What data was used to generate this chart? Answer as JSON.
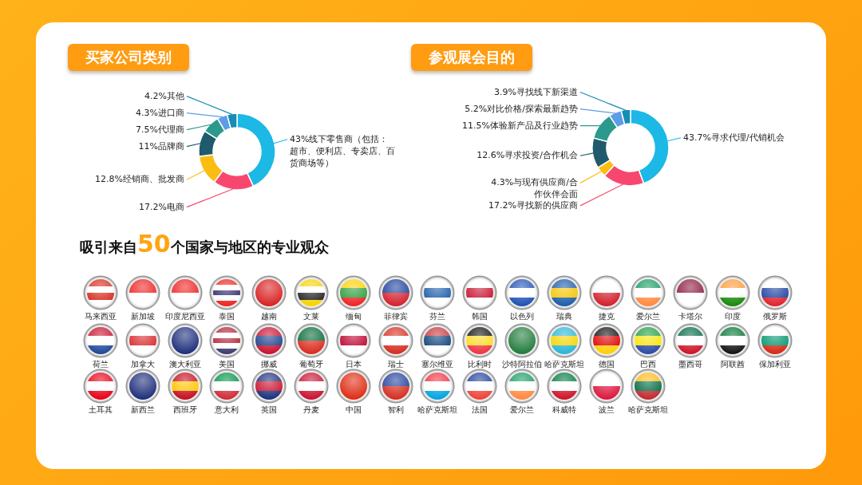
{
  "chart_data": [
    {
      "type": "donut",
      "title": "买家公司类别",
      "categories": [
        "线下零售商（包括：超市、便利店、专卖店、百货商场等）",
        "电商",
        "经销商、批发商",
        "品牌商",
        "代理商",
        "进口商",
        "其他"
      ],
      "values": [
        43,
        17.2,
        12.8,
        11,
        7.5,
        4.3,
        4.2
      ],
      "value_labels": [
        "43%",
        "17.2%",
        "12.8%",
        "11%",
        "7.5%",
        "4.3%",
        "4.2%"
      ],
      "colors": [
        "#1cb8e6",
        "#f7476e",
        "#fbbd12",
        "#1f5b6c",
        "#2b9a8c",
        "#5c9ce8",
        "#168db4"
      ]
    },
    {
      "type": "donut",
      "title": "参观展会目的",
      "categories": [
        "寻求代理/代销机会",
        "寻找新的供应商",
        "与现有供应商/合作伙伴会面",
        "寻求投资/合作机会",
        "体验新产品及行业趋势",
        "对比价格/探索最新趋势",
        "寻找线下新渠道"
      ],
      "values": [
        43.7,
        17.2,
        4.3,
        12.6,
        11.5,
        5.2,
        3.9
      ],
      "value_labels": [
        "43.7%",
        "17.2%",
        "4.3%",
        "12.6%",
        "11.5%",
        "5.2%",
        "3.9%"
      ],
      "colors": [
        "#1cb8e6",
        "#f7476e",
        "#fbbd12",
        "#1f5b6c",
        "#2b9a8c",
        "#5c9ce8",
        "#168db4"
      ]
    },
    {
      "type": "other",
      "title": "吸引来自50个国家与地区的专业观众",
      "annotations": [
        "马来西亚",
        "新加坡",
        "印度尼西亚",
        "泰国",
        "越南",
        "文莱",
        "缅甸",
        "菲律宾",
        "芬兰",
        "韩国",
        "以色列",
        "瑞典",
        "捷克",
        "爱尔兰",
        "卡塔尔",
        "印度",
        "俄罗斯",
        "荷兰",
        "加拿大",
        "澳大利亚",
        "美国",
        "挪威",
        "葡萄牙",
        "日本",
        "瑞士",
        "塞尔维亚",
        "比利时",
        "沙特阿拉伯",
        "哈萨克斯坦",
        "德国",
        "巴西",
        "墨西哥",
        "阿联酋",
        "保加利亚",
        "土耳其",
        "新西兰",
        "西班牙",
        "意大利",
        "英国",
        "丹麦",
        "中国",
        "智利",
        "哈萨克斯坦",
        "法国",
        "爱尔兰",
        "科威特",
        "波兰",
        "哈萨克斯坦"
      ]
    }
  ]
}
